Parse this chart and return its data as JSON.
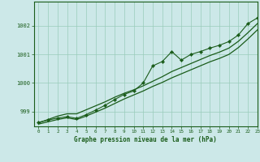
{
  "title": "Graphe pression niveau de la mer (hPa)",
  "bg_color": "#cce8e8",
  "plot_bg_color": "#cce8e8",
  "grid_color": "#99ccbb",
  "line_color": "#1a5c1a",
  "xlim": [
    -0.5,
    23
  ],
  "ylim": [
    998.48,
    1002.85
  ],
  "yticks": [
    999,
    1000,
    1001,
    1002
  ],
  "xticks": [
    0,
    1,
    2,
    3,
    4,
    5,
    6,
    7,
    8,
    9,
    10,
    11,
    12,
    13,
    14,
    15,
    16,
    17,
    18,
    19,
    20,
    21,
    22,
    23
  ],
  "hours": [
    0,
    1,
    2,
    3,
    4,
    5,
    6,
    7,
    8,
    9,
    10,
    11,
    12,
    13,
    14,
    15,
    16,
    17,
    18,
    19,
    20,
    21,
    22,
    23
  ],
  "pressure_main": [
    998.62,
    998.7,
    998.77,
    998.82,
    998.76,
    998.89,
    999.05,
    999.22,
    999.42,
    999.6,
    999.72,
    1000.0,
    1000.6,
    1000.75,
    1001.1,
    1000.8,
    1001.0,
    1001.1,
    1001.22,
    1001.32,
    1001.45,
    1001.68,
    1002.08,
    1002.28
  ],
  "pressure_upper": [
    998.6,
    998.72,
    998.84,
    998.92,
    998.92,
    999.06,
    999.2,
    999.34,
    999.5,
    999.64,
    999.76,
    999.9,
    1000.06,
    1000.22,
    1000.4,
    1000.54,
    1000.68,
    1000.82,
    1000.96,
    1001.08,
    1001.22,
    1001.46,
    1001.76,
    1002.08
  ],
  "pressure_lower": [
    998.56,
    998.64,
    998.72,
    998.78,
    998.72,
    998.84,
    998.98,
    999.12,
    999.28,
    999.44,
    999.58,
    999.72,
    999.88,
    1000.02,
    1000.18,
    1000.32,
    1000.46,
    1000.6,
    1000.74,
    1000.86,
    1001.0,
    1001.24,
    1001.54,
    1001.86
  ]
}
